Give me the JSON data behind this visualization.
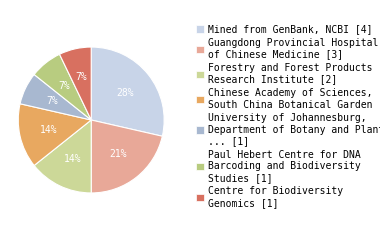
{
  "labels": [
    "Mined from GenBank, NCBI [4]",
    "Guangdong Provincial Hospital\nof Chinese Medicine [3]",
    "Forestry and Forest Products\nResearch Institute [2]",
    "Chinese Academy of Sciences,\nSouth China Botanical Garden [2]",
    "University of Johannesburg,\nDepartment of Botany and Plant\n... [1]",
    "Paul Hebert Centre for DNA\nBarcoding and Biodiversity\nStudies [1]",
    "Centre for Biodiversity\nGenomics [1]"
  ],
  "values": [
    4,
    3,
    2,
    2,
    1,
    1,
    1
  ],
  "colors": [
    "#c8d4e8",
    "#e8a898",
    "#ccd898",
    "#e8a860",
    "#a8b8d0",
    "#b8cc80",
    "#d87060"
  ],
  "pct_labels": [
    "28%",
    "21%",
    "14%",
    "14%",
    "7%",
    "7%",
    "7%"
  ],
  "startangle": 90,
  "background_color": "#ffffff",
  "fontsize": 7.0,
  "legend_fontsize": 7.0
}
